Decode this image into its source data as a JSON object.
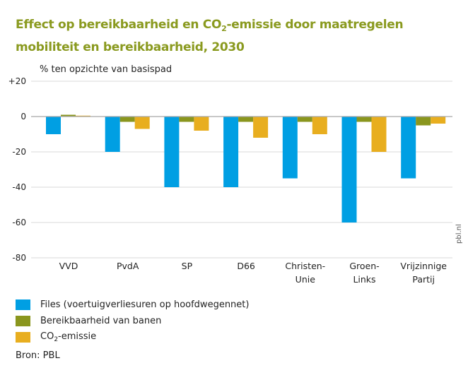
{
  "title_parts": {
    "before": "Effect op bereikbaarheid en CO",
    "sub": "2",
    "after": "-emissie door maatregelen mobiliteit en bereikbaarheid, 2030"
  },
  "legend": [
    {
      "label_before": "Files (voertuigverliesuren op hoofdwegennet)",
      "sub": "",
      "label_after": "",
      "color": "#009fe3"
    },
    {
      "label_before": "Bereikbaarheid van banen",
      "sub": "",
      "label_after": "",
      "color": "#8a961e"
    },
    {
      "label_before": "CO",
      "sub": "2",
      "label_after": "-emissie",
      "color": "#e8ae1f"
    }
  ],
  "source": "Bron: PBL",
  "watermark": "pbl.nl",
  "chart_data": {
    "type": "bar",
    "title": "Effect op bereikbaarheid en CO2-emissie door maatregelen mobiliteit en bereikbaarheid, 2030",
    "ylabel": "% ten opzichte van basispad",
    "xlabel": "",
    "ylim": [
      -80,
      20
    ],
    "yticks": [
      20,
      0,
      -20,
      -40,
      -60,
      -80
    ],
    "ytick_labels": [
      "+20",
      "0",
      "-20",
      "-40",
      "-60",
      "-80"
    ],
    "grid": true,
    "legend_position": "bottom-left",
    "categories": [
      [
        "VVD"
      ],
      [
        "PvdA"
      ],
      [
        "SP"
      ],
      [
        "D66"
      ],
      [
        "Christen-",
        "Unie"
      ],
      [
        "Groen-",
        "Links"
      ],
      [
        "Vrijzinnige",
        "Partij"
      ]
    ],
    "series": [
      {
        "name": "Files (voertuigverliesuren op hoofdwegennet)",
        "color": "#009fe3",
        "values": [
          -10,
          -20,
          -40,
          -40,
          -35,
          -60,
          -35
        ]
      },
      {
        "name": "Bereikbaarheid van banen",
        "color": "#8a961e",
        "values": [
          1,
          -3,
          -3,
          -3,
          -3,
          -3,
          -5
        ]
      },
      {
        "name": "CO2-emissie",
        "color": "#e8ae1f",
        "values": [
          0.5,
          -7,
          -8,
          -12,
          -10,
          -20,
          -4
        ]
      }
    ]
  }
}
